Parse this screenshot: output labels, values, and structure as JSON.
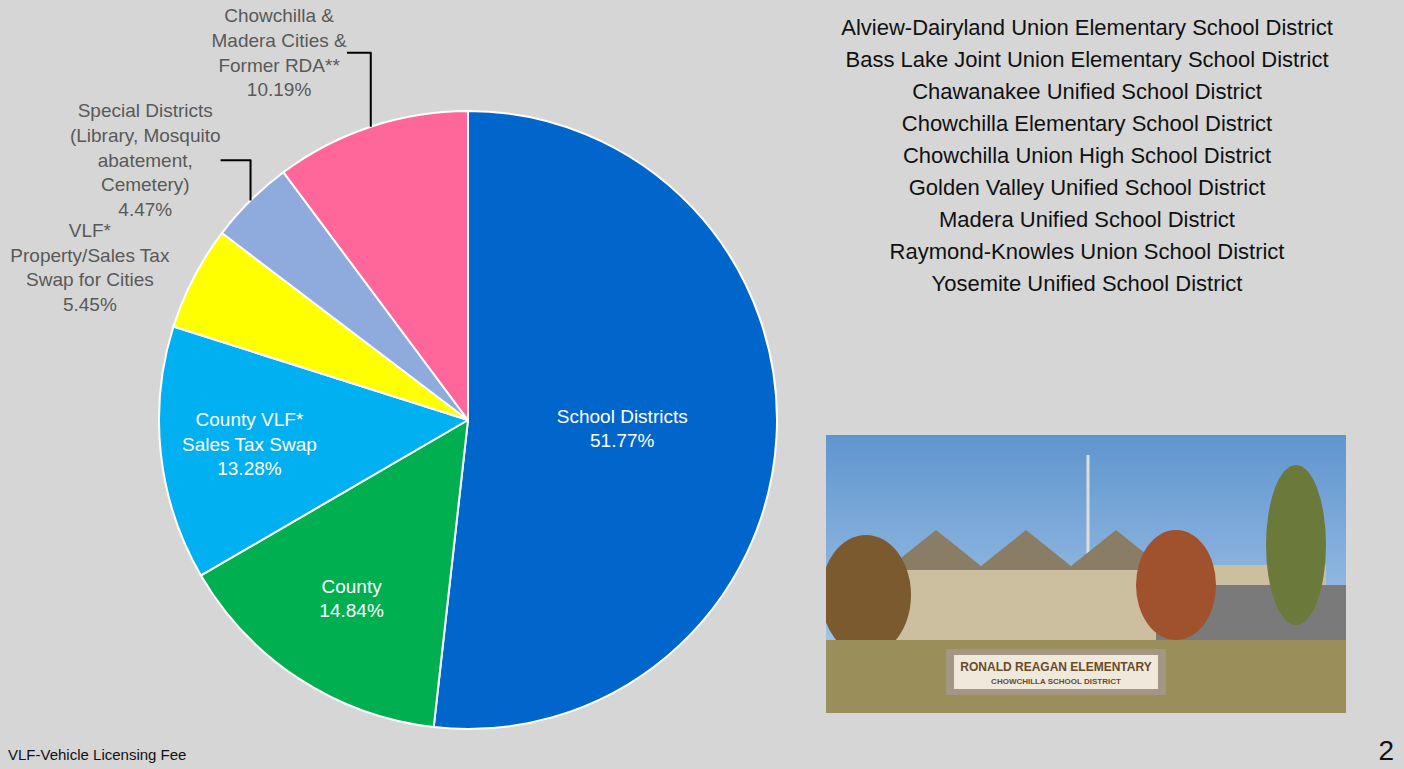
{
  "chart_data": {
    "type": "pie",
    "categories": [
      "School Districts",
      "County",
      "County VLF* Sales Tax Swap",
      "VLF* Property/Sales Tax Swap for Cities",
      "Special Districts (Library, Mosquito abatement, Cemetery)",
      "Chowchilla & Madera Cities & Former RDA**"
    ],
    "values": [
      51.77,
      14.84,
      13.28,
      5.45,
      4.47,
      10.19
    ],
    "value_labels": [
      "51.77%",
      "14.84%",
      "13.28%",
      "5.45%",
      "4.47%",
      "10.19%"
    ],
    "colors": [
      "#0066cc",
      "#00b050",
      "#00b0f0",
      "#ffff00",
      "#8faadc",
      "#ff6699"
    ],
    "data_labels": true
  },
  "districts": [
    "Alview-Dairyland Union Elementary School District",
    "Bass Lake Joint Union Elementary School District",
    "Chawanakee Unified School District",
    "Chowchilla Elementary School District",
    "Chowchilla Union High School District",
    "Golden Valley Unified School District",
    "Madera Unified School District",
    "Raymond-Knowles Union School District",
    "Yosemite Unified School District"
  ],
  "photo_sign": [
    "RONALD REAGAN ELEMENTARY",
    "CHOWCHILLA SCHOOL DISTRICT"
  ],
  "footnote": "VLF-Vehicle Licensing Fee",
  "page_number": "2"
}
